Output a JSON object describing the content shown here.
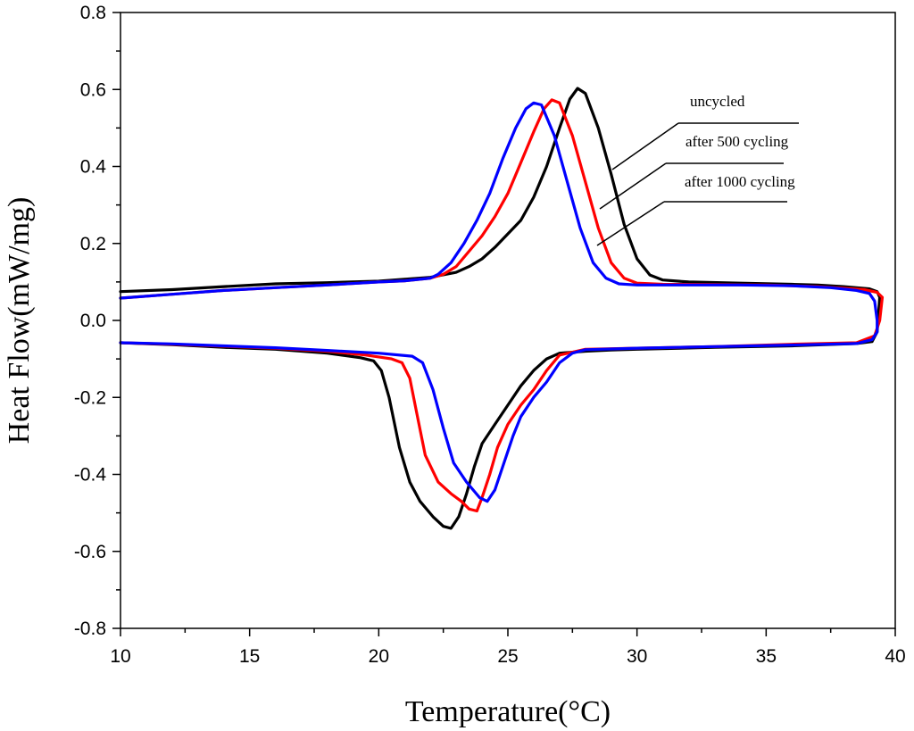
{
  "chart_data": {
    "type": "line",
    "title": "",
    "xlabel": "Temperature(°C)",
    "ylabel": "Heat Flow(mW/mg)",
    "xlim": [
      10,
      40
    ],
    "ylim": [
      -0.8,
      0.8
    ],
    "x_ticks": [
      10,
      15,
      20,
      25,
      30,
      35,
      40
    ],
    "x_tick_labels": [
      "10",
      "15",
      "20",
      "25",
      "30",
      "35",
      "40"
    ],
    "y_ticks": [
      -0.8,
      -0.6,
      -0.4,
      -0.2,
      0.0,
      0.2,
      0.4,
      0.6,
      0.8
    ],
    "y_tick_labels": [
      "-0.8",
      "-0.6",
      "-0.4",
      "-0.2",
      "0.0",
      "0.2",
      "0.4",
      "0.6",
      "0.8"
    ],
    "grid": false,
    "legend": "annotations with leader lines, top-right",
    "series": [
      {
        "name": "uncycled",
        "color": "#000000",
        "heating": [
          [
            10,
            0.075
          ],
          [
            12,
            0.08
          ],
          [
            14,
            0.088
          ],
          [
            16,
            0.095
          ],
          [
            18,
            0.098
          ],
          [
            20,
            0.102
          ],
          [
            21,
            0.107
          ],
          [
            22,
            0.112
          ],
          [
            23,
            0.125
          ],
          [
            23.5,
            0.14
          ],
          [
            24,
            0.16
          ],
          [
            24.5,
            0.19
          ],
          [
            25,
            0.225
          ],
          [
            25.5,
            0.26
          ],
          [
            26,
            0.32
          ],
          [
            26.5,
            0.4
          ],
          [
            27,
            0.5
          ],
          [
            27.4,
            0.575
          ],
          [
            27.7,
            0.603
          ],
          [
            28,
            0.59
          ],
          [
            28.5,
            0.5
          ],
          [
            29,
            0.38
          ],
          [
            29.5,
            0.25
          ],
          [
            30,
            0.16
          ],
          [
            30.5,
            0.118
          ],
          [
            31,
            0.105
          ],
          [
            32,
            0.1
          ],
          [
            34,
            0.097
          ],
          [
            36,
            0.094
          ],
          [
            37,
            0.092
          ],
          [
            38,
            0.088
          ],
          [
            38.5,
            0.085
          ],
          [
            39,
            0.082
          ],
          [
            39.3,
            0.075
          ],
          [
            39.4,
            0.06
          ]
        ],
        "cooling": [
          [
            39.4,
            0.06
          ],
          [
            39.3,
            -0.03
          ],
          [
            39.1,
            -0.055
          ],
          [
            38.5,
            -0.06
          ],
          [
            36,
            -0.066
          ],
          [
            33,
            -0.07
          ],
          [
            30,
            -0.075
          ],
          [
            29,
            -0.077
          ],
          [
            28,
            -0.08
          ],
          [
            27,
            -0.085
          ],
          [
            26.5,
            -0.1
          ],
          [
            26,
            -0.13
          ],
          [
            25.5,
            -0.17
          ],
          [
            25,
            -0.22
          ],
          [
            24.5,
            -0.27
          ],
          [
            24,
            -0.32
          ],
          [
            23.7,
            -0.38
          ],
          [
            23.4,
            -0.45
          ],
          [
            23.1,
            -0.51
          ],
          [
            22.8,
            -0.54
          ],
          [
            22.5,
            -0.535
          ],
          [
            22.1,
            -0.51
          ],
          [
            21.6,
            -0.47
          ],
          [
            21.2,
            -0.42
          ],
          [
            20.8,
            -0.33
          ],
          [
            20.4,
            -0.2
          ],
          [
            20.1,
            -0.13
          ],
          [
            19.8,
            -0.105
          ],
          [
            19.3,
            -0.097
          ],
          [
            18,
            -0.085
          ],
          [
            16,
            -0.075
          ],
          [
            14,
            -0.07
          ],
          [
            12,
            -0.063
          ],
          [
            10,
            -0.058
          ]
        ]
      },
      {
        "name": "after 500 cycling",
        "color": "#ff0000",
        "heating": [
          [
            10,
            0.058
          ],
          [
            12,
            0.068
          ],
          [
            14,
            0.078
          ],
          [
            16,
            0.085
          ],
          [
            18,
            0.092
          ],
          [
            20,
            0.1
          ],
          [
            21,
            0.103
          ],
          [
            22,
            0.11
          ],
          [
            22.5,
            0.12
          ],
          [
            23,
            0.14
          ],
          [
            23.5,
            0.18
          ],
          [
            24,
            0.22
          ],
          [
            24.5,
            0.27
          ],
          [
            25,
            0.33
          ],
          [
            25.5,
            0.41
          ],
          [
            26,
            0.49
          ],
          [
            26.4,
            0.55
          ],
          [
            26.7,
            0.573
          ],
          [
            27,
            0.565
          ],
          [
            27.5,
            0.48
          ],
          [
            28,
            0.36
          ],
          [
            28.5,
            0.24
          ],
          [
            29,
            0.15
          ],
          [
            29.5,
            0.11
          ],
          [
            30,
            0.097
          ],
          [
            31,
            0.094
          ],
          [
            33,
            0.093
          ],
          [
            35,
            0.092
          ],
          [
            37,
            0.088
          ],
          [
            38,
            0.084
          ],
          [
            38.8,
            0.08
          ],
          [
            39.3,
            0.073
          ],
          [
            39.5,
            0.06
          ]
        ],
        "cooling": [
          [
            39.5,
            0.06
          ],
          [
            39.4,
            0
          ],
          [
            39.2,
            -0.04
          ],
          [
            38.5,
            -0.058
          ],
          [
            36,
            -0.062
          ],
          [
            33,
            -0.068
          ],
          [
            30,
            -0.072
          ],
          [
            28,
            -0.075
          ],
          [
            27,
            -0.09
          ],
          [
            26.5,
            -0.13
          ],
          [
            26,
            -0.18
          ],
          [
            25.5,
            -0.22
          ],
          [
            25,
            -0.27
          ],
          [
            24.6,
            -0.33
          ],
          [
            24.3,
            -0.4
          ],
          [
            24,
            -0.46
          ],
          [
            23.8,
            -0.495
          ],
          [
            23.5,
            -0.49
          ],
          [
            23.2,
            -0.47
          ],
          [
            22.8,
            -0.45
          ],
          [
            22.3,
            -0.42
          ],
          [
            21.8,
            -0.35
          ],
          [
            21.5,
            -0.25
          ],
          [
            21.2,
            -0.15
          ],
          [
            20.9,
            -0.11
          ],
          [
            20.5,
            -0.1
          ],
          [
            19.5,
            -0.09
          ],
          [
            18,
            -0.08
          ],
          [
            16,
            -0.072
          ],
          [
            14,
            -0.067
          ],
          [
            12,
            -0.062
          ],
          [
            10,
            -0.058
          ]
        ]
      },
      {
        "name": "after 1000 cycling",
        "color": "#0000ff",
        "heating": [
          [
            10,
            0.058
          ],
          [
            12,
            0.068
          ],
          [
            14,
            0.078
          ],
          [
            16,
            0.085
          ],
          [
            18,
            0.092
          ],
          [
            20,
            0.1
          ],
          [
            21,
            0.103
          ],
          [
            22,
            0.11
          ],
          [
            22.3,
            0.12
          ],
          [
            22.8,
            0.15
          ],
          [
            23.3,
            0.2
          ],
          [
            23.8,
            0.26
          ],
          [
            24.3,
            0.33
          ],
          [
            24.8,
            0.42
          ],
          [
            25.3,
            0.5
          ],
          [
            25.7,
            0.55
          ],
          [
            26,
            0.565
          ],
          [
            26.3,
            0.56
          ],
          [
            26.8,
            0.48
          ],
          [
            27.3,
            0.36
          ],
          [
            27.8,
            0.24
          ],
          [
            28.3,
            0.15
          ],
          [
            28.8,
            0.11
          ],
          [
            29.3,
            0.095
          ],
          [
            30,
            0.092
          ],
          [
            32,
            0.092
          ],
          [
            34,
            0.092
          ],
          [
            36,
            0.09
          ],
          [
            37.5,
            0.085
          ],
          [
            38.5,
            0.078
          ],
          [
            39,
            0.07
          ],
          [
            39.2,
            0.05
          ],
          [
            39.3,
            0.0
          ]
        ],
        "cooling": [
          [
            39.3,
            0.0
          ],
          [
            39.3,
            -0.03
          ],
          [
            39.1,
            -0.05
          ],
          [
            38.5,
            -0.06
          ],
          [
            36,
            -0.064
          ],
          [
            33,
            -0.068
          ],
          [
            30,
            -0.072
          ],
          [
            28,
            -0.076
          ],
          [
            27.5,
            -0.085
          ],
          [
            27,
            -0.11
          ],
          [
            26.5,
            -0.16
          ],
          [
            26,
            -0.2
          ],
          [
            25.5,
            -0.25
          ],
          [
            25.2,
            -0.3
          ],
          [
            24.8,
            -0.38
          ],
          [
            24.5,
            -0.44
          ],
          [
            24.2,
            -0.47
          ],
          [
            23.9,
            -0.46
          ],
          [
            23.4,
            -0.42
          ],
          [
            22.9,
            -0.37
          ],
          [
            22.5,
            -0.28
          ],
          [
            22.1,
            -0.18
          ],
          [
            21.7,
            -0.11
          ],
          [
            21.3,
            -0.093
          ],
          [
            20,
            -0.085
          ],
          [
            18,
            -0.078
          ],
          [
            16,
            -0.071
          ],
          [
            14,
            -0.066
          ],
          [
            12,
            -0.061
          ],
          [
            10,
            -0.058
          ]
        ]
      }
    ]
  }
}
